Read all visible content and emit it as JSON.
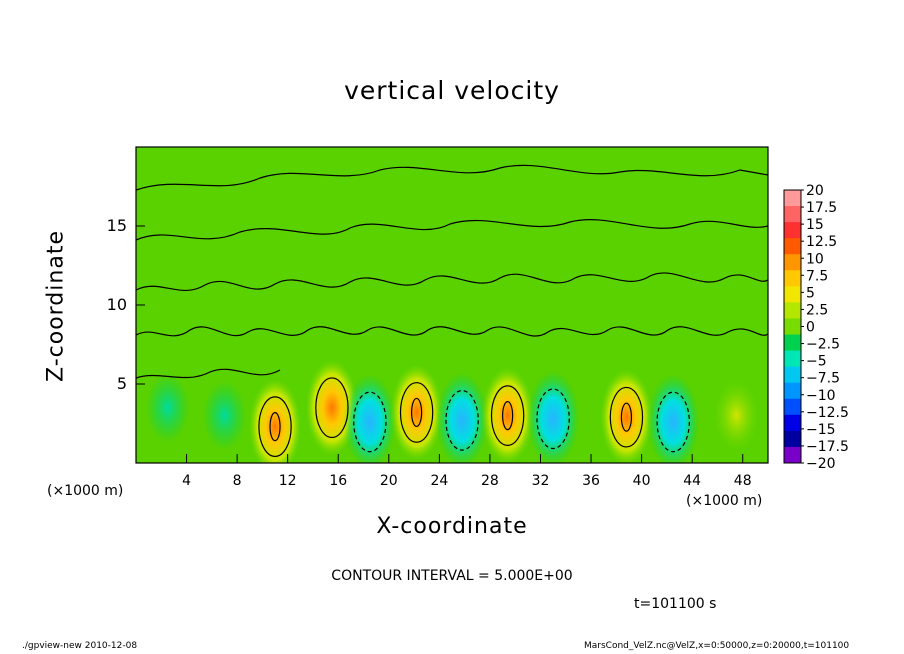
{
  "chart_data": {
    "type": "heatmap",
    "title": "vertical velocity",
    "xlabel": "X-coordinate",
    "ylabel": "Z-coordinate",
    "x_unit": "(×1000 m)",
    "xlim": [
      0,
      50
    ],
    "ylim": [
      0,
      20
    ],
    "x_ticks": [
      "4",
      "8",
      "12",
      "16",
      "20",
      "24",
      "28",
      "32",
      "36",
      "40",
      "44",
      "48"
    ],
    "y_ticks": [
      "5",
      "10",
      "15"
    ],
    "colorbar": {
      "labels": [
        "20",
        "17.5",
        "15",
        "12.5",
        "10",
        "7.5",
        "5",
        "2.5",
        "0",
        "−2.5",
        "−5",
        "−7.5",
        "−10",
        "−12.5",
        "−15",
        "−17.5",
        "−20"
      ],
      "colors": [
        "#ff9a9a",
        "#ff6464",
        "#ff3030",
        "#ff5a00",
        "#ff9600",
        "#ffc800",
        "#f0e600",
        "#b4e600",
        "#78dc00",
        "#00d250",
        "#00e6b4",
        "#00c8f0",
        "#0096ff",
        "#0050ff",
        "#0000e6",
        "#0000a0",
        "#7800c8"
      ]
    },
    "features": [
      {
        "x": 11,
        "z": 2.3,
        "w": 10
      },
      {
        "x": 15.5,
        "z": 3.5,
        "w": 6
      },
      {
        "x": 18.5,
        "z": 2.6,
        "w": -9
      },
      {
        "x": 22.2,
        "z": 3.2,
        "w": 11
      },
      {
        "x": 25.8,
        "z": 2.7,
        "w": -8
      },
      {
        "x": 29.4,
        "z": 3.0,
        "w": 10
      },
      {
        "x": 33.0,
        "z": 2.8,
        "w": -6
      },
      {
        "x": 38.8,
        "z": 2.9,
        "w": 11
      },
      {
        "x": 42.5,
        "z": 2.6,
        "w": -7
      },
      {
        "x": 2.5,
        "z": 3.5,
        "w": -3
      },
      {
        "x": 7.0,
        "z": 3.0,
        "w": -3
      },
      {
        "x": 47.5,
        "z": 3.0,
        "w": 4
      }
    ],
    "contour_interval": "CONTOUR INTERVAL = 5.000E+00",
    "time": "t=101100 s"
  },
  "footer": {
    "left": "./gpview-new  2010-12-08",
    "right": "MarsCond_VelZ.nc@VelZ,x=0:50000,z=0:20000,t=101100"
  }
}
